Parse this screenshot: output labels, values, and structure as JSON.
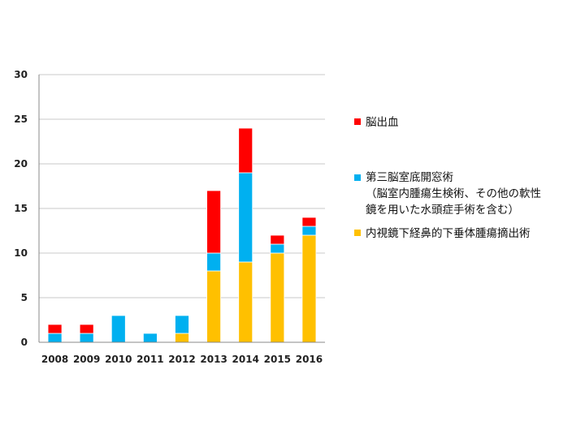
{
  "chart_data": {
    "type": "bar",
    "stacked": true,
    "categories": [
      "2008",
      "2009",
      "2010",
      "2011",
      "2012",
      "2013",
      "2014",
      "2015",
      "2016"
    ],
    "series": [
      {
        "name": "内視鏡下経鼻的下垂体腫瘍摘出術",
        "color": "#ffc000",
        "values": [
          0,
          0,
          0,
          0,
          1,
          8,
          9,
          10,
          12
        ]
      },
      {
        "name": "第三脳室底開窓術",
        "color": "#00b0f0",
        "values": [
          1,
          1,
          3,
          1,
          2,
          2,
          10,
          1,
          1
        ]
      },
      {
        "name": "脳出血",
        "color": "#ff0000",
        "values": [
          1,
          1,
          0,
          0,
          0,
          7,
          5,
          1,
          1
        ]
      }
    ],
    "ylim": [
      0,
      30
    ],
    "yticks": [
      "0",
      "5",
      "10",
      "15",
      "20",
      "25",
      "30"
    ],
    "grid": true,
    "legend_position": "right"
  },
  "legend": {
    "hemorrhage": "脳出血",
    "ventriculostomy": "第三脳室底開窓術",
    "ventriculostomy_note_1": "（脳室内腫瘍生検術、その他の軟性",
    "ventriculostomy_note_2": "鏡を用いた水頭症手術を含む）",
    "pituitary": "内視鏡下経鼻的下垂体腫瘍摘出術"
  }
}
